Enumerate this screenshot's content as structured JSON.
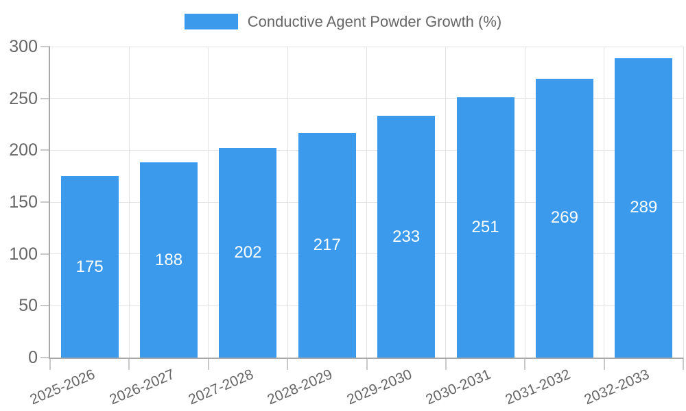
{
  "legend": {
    "label": "Conductive Agent Powder Growth (%)"
  },
  "colors": {
    "bar": "#3B9AEC",
    "axis_text": "#666666",
    "value_text": "#FFFFFF",
    "gridline": "#E3E3E3",
    "tick": "#C9C9C9",
    "axis_line": "#A9A9A9",
    "background": "#FFFFFF"
  },
  "chart_data": {
    "type": "bar",
    "series": [
      {
        "name": "Conductive Agent Powder Growth (%)",
        "values": [
          175,
          188,
          202,
          217,
          233,
          251,
          269,
          289
        ]
      }
    ],
    "categories": [
      "2025-2026",
      "2026-2027",
      "2027-2028",
      "2028-2029",
      "2029-2030",
      "2030-2031",
      "2031-2032",
      "2032-2033"
    ],
    "ylim": [
      0,
      300
    ],
    "yticks": [
      0,
      50,
      100,
      150,
      200,
      250,
      300
    ],
    "grid": true,
    "legend_position": "top",
    "bar_value_labels": "inside-middle",
    "x_tick_rotation_deg": -23
  }
}
